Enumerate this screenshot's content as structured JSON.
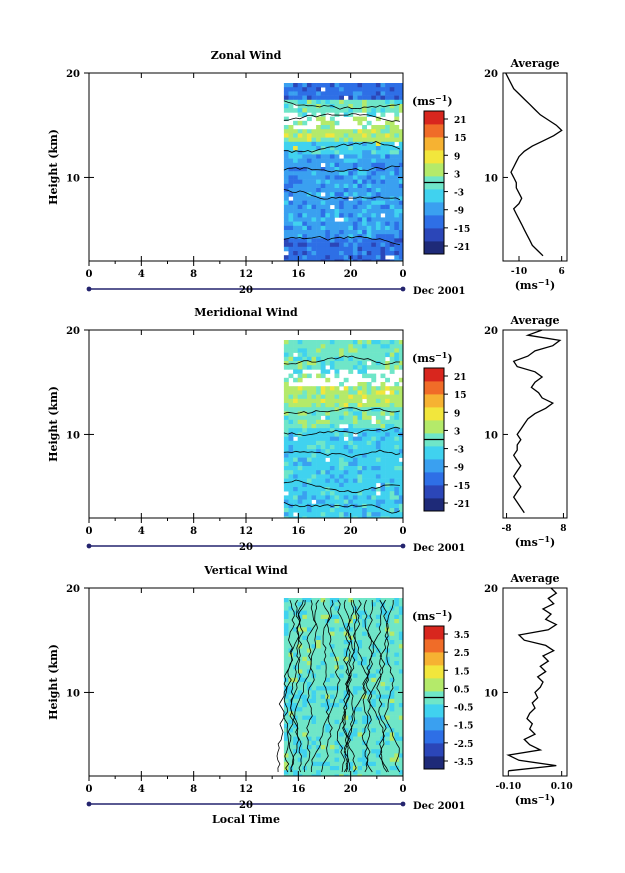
{
  "chart_data": [
    {
      "type": "heatmap",
      "title": "Zonal Wind",
      "ylabel": "Height (km)",
      "ylim": [
        2,
        20
      ],
      "y_ticks": [
        "20",
        "10"
      ],
      "x_ticks": [
        "0",
        "4",
        "8",
        "12",
        "16",
        "20",
        "0"
      ],
      "date_tick": "20",
      "date_label": "Dec 2001",
      "colorbar_unit": "(ms",
      "unit_exp": "−1",
      "colorbar_ticks": [
        "21",
        "15",
        "9",
        "3",
        "-3",
        "-9",
        "-15",
        "-21"
      ],
      "colorbar_range": [
        -24,
        24
      ],
      "data_start_hour": 14.9,
      "profile": {
        "title": "Average",
        "xlim": [
          -16,
          8
        ],
        "x_ticks": [
          "-10",
          "6"
        ],
        "x_tick_values": [
          -10,
          6
        ],
        "y_ticks": [
          "20",
          "10"
        ],
        "xlabel": "(ms",
        "heights": [
          2.5,
          3,
          3.5,
          4,
          4.5,
          5,
          5.5,
          6,
          6.5,
          7,
          7.5,
          8,
          8.5,
          9,
          9.5,
          10,
          10.5,
          11,
          11.5,
          12,
          12.5,
          13,
          13.5,
          14,
          14.5,
          15,
          15.5,
          16,
          16.5,
          17,
          17.5,
          18,
          18.5,
          19,
          19.5,
          20
        ],
        "values": [
          -1,
          -3,
          -5,
          -6,
          -7,
          -8,
          -9,
          -10,
          -11,
          -12,
          -10,
          -9,
          -10,
          -11,
          -11,
          -12,
          -13,
          -12,
          -11,
          -10,
          -8,
          -5,
          -1,
          3,
          6,
          4,
          1,
          -2,
          -4,
          -6,
          -8,
          -10,
          -12,
          -13,
          -14,
          -15
        ]
      }
    },
    {
      "type": "heatmap",
      "title": "Meridional Wind",
      "ylabel": "Height (km)",
      "ylim": [
        2,
        20
      ],
      "y_ticks": [
        "20",
        "10"
      ],
      "x_ticks": [
        "0",
        "4",
        "8",
        "12",
        "16",
        "20",
        "0"
      ],
      "date_tick": "20",
      "date_label": "Dec 2001",
      "colorbar_unit": "(ms",
      "unit_exp": "−1",
      "colorbar_ticks": [
        "21",
        "15",
        "9",
        "3",
        "-3",
        "-9",
        "-15",
        "-21"
      ],
      "colorbar_range": [
        -24,
        24
      ],
      "data_start_hour": 14.9,
      "profile": {
        "title": "Average",
        "xlim": [
          -9,
          9
        ],
        "x_ticks": [
          "-8",
          "8"
        ],
        "x_tick_values": [
          -8,
          8
        ],
        "y_ticks": [
          "20",
          "10"
        ],
        "xlabel": "(ms",
        "heights": [
          2.5,
          3,
          3.5,
          4,
          4.5,
          5,
          5.5,
          6,
          6.5,
          7,
          7.5,
          8,
          8.5,
          9,
          9.5,
          10,
          10.5,
          11,
          11.5,
          12,
          12.5,
          13,
          13.5,
          14,
          14.5,
          15,
          15.5,
          16,
          16.5,
          17,
          17.5,
          18,
          18.5,
          19,
          19.5,
          20
        ],
        "values": [
          -3,
          -4,
          -5,
          -6,
          -5,
          -4,
          -5,
          -6,
          -5,
          -4,
          -5,
          -6,
          -5,
          -5,
          -4,
          -5,
          -4,
          -3,
          -2,
          0,
          3,
          5,
          2,
          1,
          -1,
          0,
          2,
          0,
          -5,
          -6,
          -2,
          0,
          5,
          7,
          -2,
          2
        ]
      }
    },
    {
      "type": "heatmap",
      "title": "Vertical Wind",
      "ylabel": "Height (km)",
      "xlabel": "Local Time",
      "ylim": [
        2,
        20
      ],
      "y_ticks": [
        "20",
        "10"
      ],
      "x_ticks": [
        "0",
        "4",
        "8",
        "12",
        "16",
        "20",
        "0"
      ],
      "date_tick": "20",
      "date_label": "Dec 2001",
      "colorbar_unit": "(ms",
      "unit_exp": "−1",
      "colorbar_ticks": [
        "3.5",
        "2.5",
        "1.5",
        "0.5",
        "-0.5",
        "-1.5",
        "-2.5",
        "-3.5"
      ],
      "colorbar_range": [
        -4,
        4
      ],
      "data_start_hour": 14.9,
      "profile": {
        "title": "Average",
        "xlim": [
          -0.12,
          0.12
        ],
        "x_ticks": [
          "-0.10",
          "0.10"
        ],
        "x_tick_values": [
          -0.1,
          0.1
        ],
        "y_ticks": [
          "20",
          "10"
        ],
        "xlabel": "(ms",
        "heights": [
          2.5,
          3,
          3.5,
          4,
          4.5,
          5,
          5.5,
          6,
          6.5,
          7,
          7.5,
          8,
          8.5,
          9,
          9.5,
          10,
          10.5,
          11,
          11.5,
          12,
          12.5,
          13,
          13.5,
          14,
          14.5,
          15,
          15.5,
          16,
          16.5,
          17,
          17.5,
          18,
          18.5,
          19,
          19.5,
          20
        ],
        "values": [
          -0.1,
          0.08,
          -0.06,
          -0.1,
          0.02,
          -0.02,
          -0.04,
          0,
          -0.02,
          -0.01,
          -0.03,
          -0.02,
          0,
          -0.01,
          0.01,
          0,
          0.02,
          0.03,
          0.01,
          0.04,
          0.02,
          0.05,
          0.03,
          0.07,
          0.04,
          -0.04,
          -0.06,
          0.05,
          0.08,
          0.04,
          0.06,
          0.03,
          0.07,
          0.05,
          0.08,
          0.06
        ]
      }
    }
  ],
  "colors": {
    "scale": [
      "#1e2a78",
      "#2b46b8",
      "#2e6fe6",
      "#3aa0f0",
      "#40d2ef",
      "#6fe6c8",
      "#b4ea6a",
      "#f2e63c",
      "#f6b232",
      "#f06c28",
      "#d8261e"
    ],
    "timeline": "#24246e"
  }
}
